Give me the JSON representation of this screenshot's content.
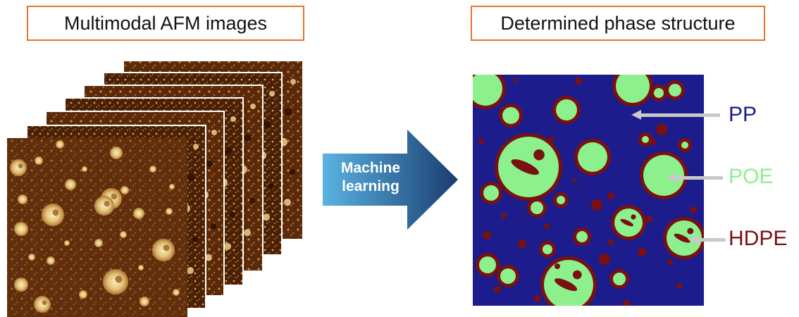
{
  "left_panel": {
    "title": "Multimodal AFM images"
  },
  "right_panel": {
    "title": "Determined phase structure"
  },
  "process": {
    "label_line1": "Machine",
    "label_line2": "learning"
  },
  "phases": [
    {
      "name": "PP",
      "color": "#1c1c8c"
    },
    {
      "name": "POE",
      "color": "#8cf08c"
    },
    {
      "name": "HDPE",
      "color": "#7a1010"
    }
  ],
  "colors": {
    "title_border": "#e8732a",
    "afm_dark": "#3d1804",
    "afm_light": "#f2e3a0",
    "arrow_light": "#5ab3e2",
    "arrow_dark": "#1a3c70",
    "callout": "#c9c9c9"
  }
}
